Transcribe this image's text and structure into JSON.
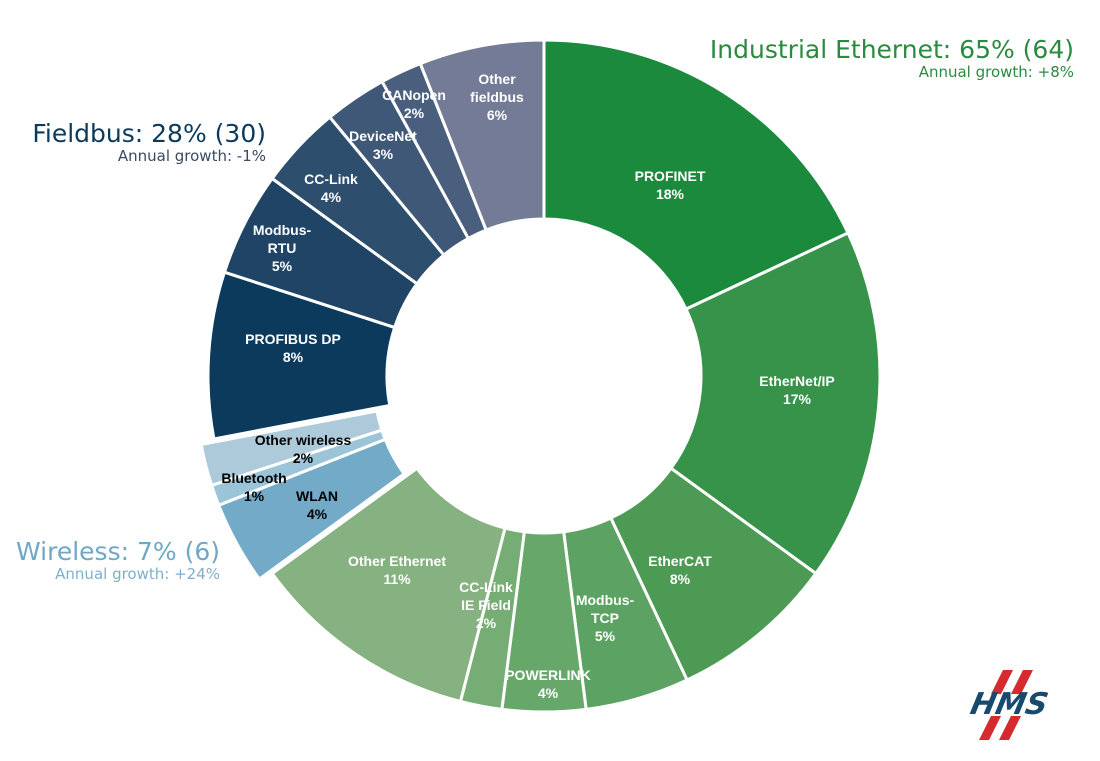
{
  "chart_data": {
    "type": "pie",
    "donut": true,
    "unit": "%",
    "groups": [
      {
        "title": "Industrial Ethernet: 65% (64)",
        "growth": "Annual growth: +8%",
        "color": "#2a8a40"
      },
      {
        "title": "Wireless: 7% (6)",
        "growth": "Annual growth: +24%",
        "color": "#6fa8c6"
      },
      {
        "title": "Fieldbus: 28% (30)",
        "growth": "Annual growth: -1%",
        "color": "#0b3a5c"
      }
    ],
    "slices": [
      {
        "name": "PROFINET",
        "value": 18,
        "group": 0,
        "color": "#1b8a3d",
        "text_color": "#ffffff"
      },
      {
        "name": "EtherNet/IP",
        "value": 17,
        "group": 0,
        "color": "#37924a",
        "text_color": "#ffffff"
      },
      {
        "name": "EtherCAT",
        "value": 8,
        "group": 0,
        "color": "#4c9a53",
        "text_color": "#ffffff"
      },
      {
        "name": "Modbus-\nTCP",
        "value": 5,
        "group": 0,
        "color": "#5ca262",
        "text_color": "#ffffff"
      },
      {
        "name": "POWERLINK",
        "value": 4,
        "group": 0,
        "color": "#67a86a",
        "text_color": "#ffffff"
      },
      {
        "name": "CC-Link\nIE Field",
        "value": 2,
        "group": 0,
        "color": "#76ad74",
        "text_color": "#ffffff"
      },
      {
        "name": "Other Ethernet",
        "value": 11,
        "group": 0,
        "color": "#86b181",
        "text_color": "#ffffff"
      },
      {
        "name": "WLAN",
        "value": 4,
        "group": 1,
        "color": "#72aac8",
        "text_color": "#000000"
      },
      {
        "name": "Bluetooth",
        "value": 1,
        "group": 1,
        "color": "#9cc4d8",
        "text_color": "#000000"
      },
      {
        "name": "Other wireless",
        "value": 2,
        "group": 1,
        "color": "#adcadb",
        "text_color": "#000000"
      },
      {
        "name": "PROFIBUS DP",
        "value": 8,
        "group": 2,
        "color": "#0b3a5c",
        "text_color": "#ffffff"
      },
      {
        "name": "Modbus-\nRTU",
        "value": 5,
        "group": 2,
        "color": "#1f4466",
        "text_color": "#ffffff"
      },
      {
        "name": "CC-Link",
        "value": 4,
        "group": 2,
        "color": "#2e4e6e",
        "text_color": "#ffffff"
      },
      {
        "name": "DeviceNet",
        "value": 3,
        "group": 2,
        "color": "#3f5878",
        "text_color": "#ffffff"
      },
      {
        "name": "CANopen",
        "value": 2,
        "group": 2,
        "color": "#4a5f7e",
        "text_color": "#ffffff"
      },
      {
        "name": "Other\nfieldbus",
        "value": 6,
        "group": 2,
        "color": "#737b97",
        "text_color": "#ffffff"
      }
    ],
    "exploded_group": "Wireless",
    "start": "top",
    "direction": "clockwise"
  },
  "logo": {
    "text": "HMS"
  }
}
